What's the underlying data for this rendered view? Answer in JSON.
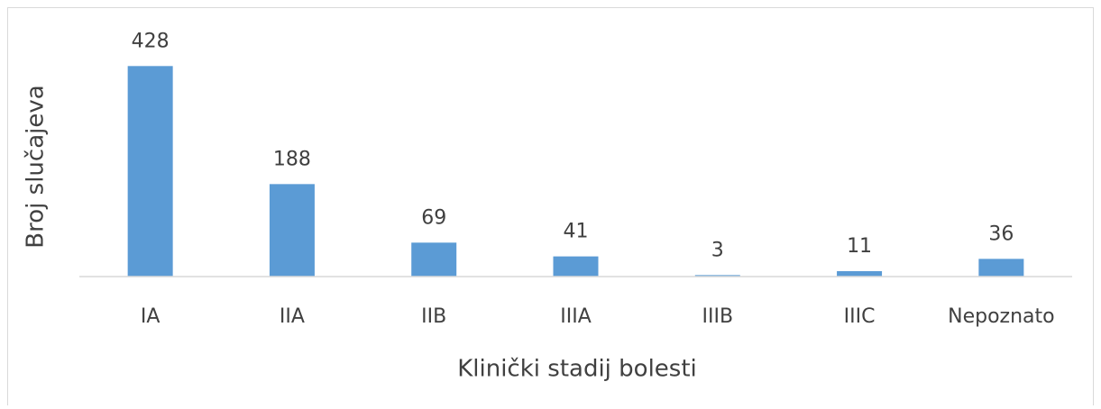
{
  "chart_data": {
    "type": "bar",
    "x_label": "Klinički stadij bolesti",
    "y_label": "Broj slučajeva",
    "categories": [
      "IA",
      "IIA",
      "IIB",
      "IIIA",
      "IIIB",
      "IIIC",
      "Nepoznato"
    ],
    "values": [
      428,
      188,
      69,
      41,
      3,
      11,
      36
    ],
    "color": "#5b9bd5",
    "ylim": [
      0,
      500
    ]
  }
}
